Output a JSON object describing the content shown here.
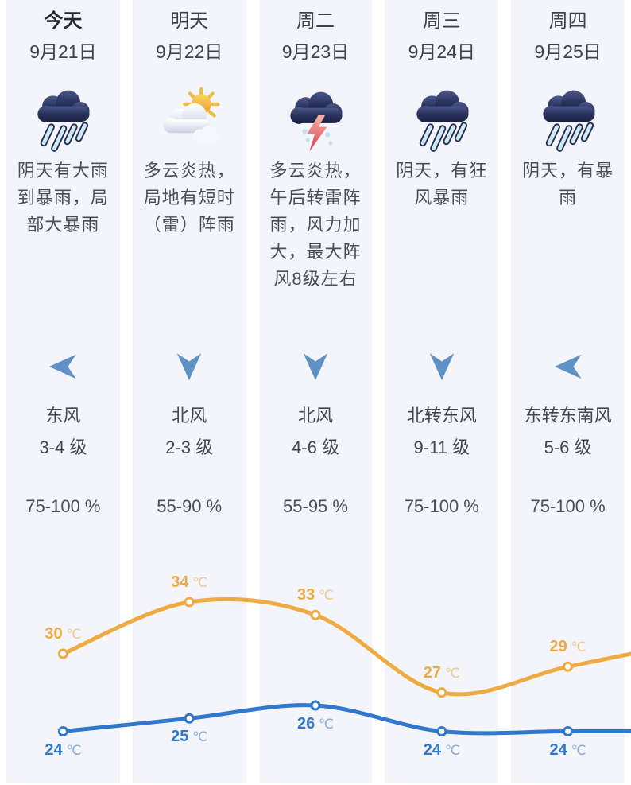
{
  "columns": [
    {
      "day": "今天",
      "date": "9月21日",
      "icon": "heavy-rain-icon",
      "desc": "阴天有大雨到暴雨，局部大暴雨",
      "wind_arrow": "left",
      "wind_dir": "东风",
      "wind_level": "3-4 级",
      "humidity": "75-100 %"
    },
    {
      "day": "明天",
      "date": "9月22日",
      "icon": "partly-cloudy-icon",
      "desc": "多云炎热，局地有短时（雷）阵雨",
      "wind_arrow": "down",
      "wind_dir": "北风",
      "wind_level": "2-3 级",
      "humidity": "55-90 %"
    },
    {
      "day": "周二",
      "date": "9月23日",
      "icon": "thunderstorm-icon",
      "desc": "多云炎热，午后转雷阵雨，风力加大，最大阵风8级左右",
      "wind_arrow": "down",
      "wind_dir": "北风",
      "wind_level": "4-6 级",
      "humidity": "55-95 %"
    },
    {
      "day": "周三",
      "date": "9月24日",
      "icon": "heavy-rain-icon",
      "desc": "阴天，有狂风暴雨",
      "wind_arrow": "down",
      "wind_dir": "北转东风",
      "wind_level": "9-11 级",
      "humidity": "75-100 %"
    },
    {
      "day": "周四",
      "date": "9月25日",
      "icon": "heavy-rain-icon",
      "desc": "阴天，有暴雨",
      "wind_arrow": "left",
      "wind_dir": "东转东南风",
      "wind_level": "5-6 级",
      "humidity": "75-100 %"
    }
  ],
  "chart_data": {
    "type": "line",
    "categories": [
      "9月21日",
      "9月22日",
      "9月23日",
      "9月24日",
      "9月25日"
    ],
    "series": [
      {
        "name": "high",
        "color": "#eeab44",
        "values": [
          30,
          34,
          33,
          27,
          29
        ]
      },
      {
        "name": "low",
        "color": "#2f78cd",
        "values": [
          24,
          25,
          26,
          24,
          24
        ]
      }
    ],
    "unit": "℃",
    "point_labels_visible": true,
    "smooth": true,
    "extends_beyond_right_edge": true,
    "grid": false,
    "legend": "none"
  },
  "colors": {
    "column_bg": "#f4f5fa",
    "high_line": "#eeab44",
    "low_line": "#2f78cd",
    "wind_arrow": "#5e92c7",
    "text_primary": "#24282f",
    "text_secondary": "#3e434b"
  }
}
